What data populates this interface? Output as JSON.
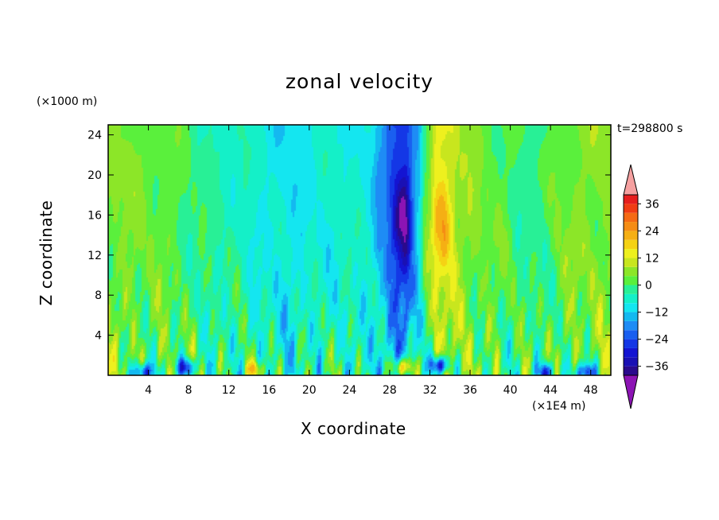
{
  "chart_data": {
    "type": "heatmap",
    "title": "zonal velocity",
    "xlabel": "X coordinate",
    "ylabel": "Z coordinate",
    "x_unit_label": "(×1E4 m)",
    "y_unit_label": "(×1000 m)",
    "time_label": "t=298800 s",
    "xlim": [
      0,
      50
    ],
    "ylim": [
      0,
      25
    ],
    "x_ticks": [
      4,
      8,
      12,
      16,
      20,
      24,
      28,
      32,
      36,
      40,
      44,
      48
    ],
    "y_ticks": [
      4,
      8,
      12,
      16,
      20,
      24
    ],
    "colorbar": {
      "levels": [
        -40,
        -36,
        -32,
        -28,
        -24,
        -20,
        -16,
        -12,
        -8,
        -4,
        0,
        4,
        8,
        12,
        16,
        20,
        24,
        28,
        32,
        36,
        40
      ],
      "colors": [
        "#2a0a8c",
        "#1a10b4",
        "#1414d2",
        "#1437e6",
        "#1a5ff0",
        "#1e8cf5",
        "#14b9f0",
        "#14e6f0",
        "#14f0c8",
        "#28f096",
        "#5af03c",
        "#8ce628",
        "#c8e61e",
        "#eef01e",
        "#f5d214",
        "#f5af14",
        "#f58c14",
        "#f56a14",
        "#f03c14",
        "#e61e1e"
      ],
      "tick_labels": [
        -36,
        -24,
        -12,
        0,
        12,
        24,
        36
      ],
      "extend_low_color": "#8c14b4",
      "extend_high_color": "#f5a0a0"
    },
    "structure": {
      "column_profiles": [
        [
          0,
          5
        ],
        [
          1,
          5
        ],
        [
          3,
          4
        ],
        [
          5,
          3
        ],
        [
          7,
          1
        ],
        [
          9,
          -2
        ],
        [
          11,
          -4
        ],
        [
          13,
          -5
        ],
        [
          15,
          -8
        ],
        [
          18,
          -11
        ],
        [
          21,
          -8
        ],
        [
          24,
          -7
        ],
        [
          26,
          -9
        ],
        [
          27,
          -16
        ],
        [
          28.5,
          -26
        ],
        [
          29.5,
          -27
        ],
        [
          30.8,
          -14
        ],
        [
          31.6,
          2
        ],
        [
          32.6,
          12
        ],
        [
          34,
          11
        ],
        [
          35.5,
          6
        ],
        [
          37,
          4
        ],
        [
          39,
          2
        ],
        [
          41,
          -1
        ],
        [
          43,
          -2
        ],
        [
          45,
          4
        ],
        [
          47,
          5
        ],
        [
          49,
          6
        ],
        [
          50,
          5
        ]
      ],
      "surface_extremes": [
        {
          "x": 3.5,
          "z": 0.3,
          "u": -30
        },
        {
          "x": 7.8,
          "z": 0.8,
          "u": -28
        },
        {
          "x": 14.5,
          "z": 0.6,
          "u": 14
        },
        {
          "x": 29.3,
          "z": 0.8,
          "u": 20
        },
        {
          "x": 33,
          "z": 1.0,
          "u": -30
        },
        {
          "x": 43.6,
          "z": 0.3,
          "u": -26
        },
        {
          "x": 47.5,
          "z": 0.3,
          "u": -28
        }
      ],
      "upper_extremes": [
        {
          "x": 29.3,
          "z": 16,
          "u": -30
        },
        {
          "x": 33.3,
          "z": 15,
          "u": 20
        }
      ]
    }
  }
}
